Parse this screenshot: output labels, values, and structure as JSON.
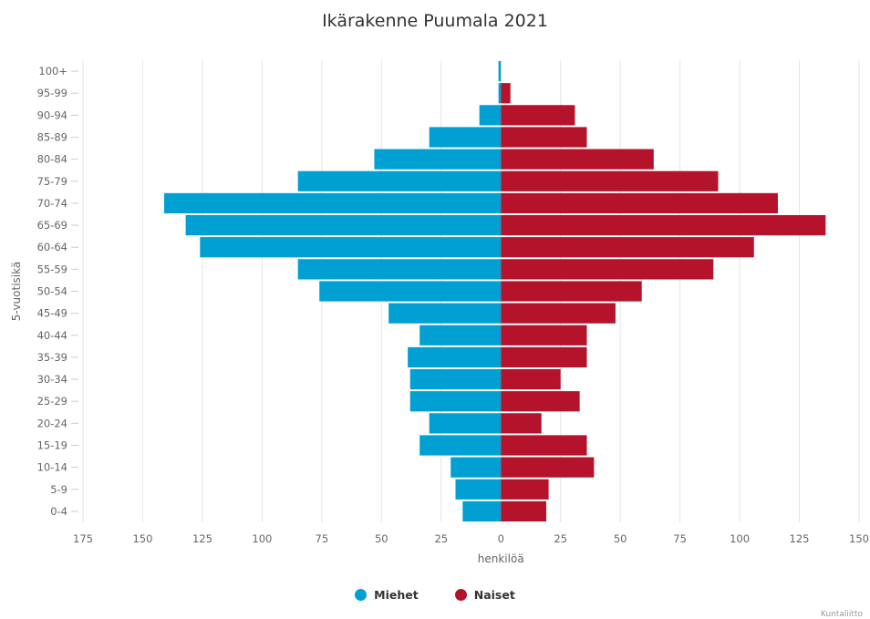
{
  "title": "Ikärakenne Puumala 2021",
  "credits": "Kuntaliitto",
  "colors": {
    "men": "#00a0d3",
    "women": "#b5132c",
    "grid": "#e6e6e6",
    "text": "#666666"
  },
  "chart_data": {
    "type": "bar",
    "orientation": "horizontal-diverging",
    "title": "Ikärakenne Puumala 2021",
    "xlabel": "henkilöä",
    "ylabel": "5-vuotisikä",
    "xlim": [
      -175,
      150
    ],
    "x_ticks": [
      -175,
      -150,
      -125,
      -100,
      -75,
      -50,
      -25,
      0,
      25,
      50,
      75,
      100,
      125,
      150
    ],
    "x_tick_labels": [
      "175",
      "150",
      "125",
      "100",
      "75",
      "50",
      "25",
      "0",
      "25",
      "50",
      "75",
      "100",
      "125",
      "150"
    ],
    "grid": true,
    "legend": "bottom-center",
    "categories": [
      "100+",
      "95-99",
      "90-94",
      "85-89",
      "80-84",
      "75-79",
      "70-74",
      "65-69",
      "60-64",
      "55-59",
      "50-54",
      "45-49",
      "40-44",
      "35-39",
      "30-34",
      "25-29",
      "20-24",
      "15-19",
      "10-14",
      "5-9",
      "0-4"
    ],
    "series": [
      {
        "name": "Miehet",
        "values": [
          1,
          1,
          9,
          30,
          53,
          85,
          141,
          132,
          126,
          85,
          76,
          47,
          34,
          39,
          38,
          38,
          30,
          34,
          21,
          19,
          16
        ]
      },
      {
        "name": "Naiset",
        "values": [
          0,
          4,
          31,
          36,
          64,
          91,
          116,
          136,
          106,
          89,
          59,
          48,
          36,
          36,
          25,
          33,
          17,
          36,
          39,
          20,
          19
        ]
      }
    ]
  }
}
